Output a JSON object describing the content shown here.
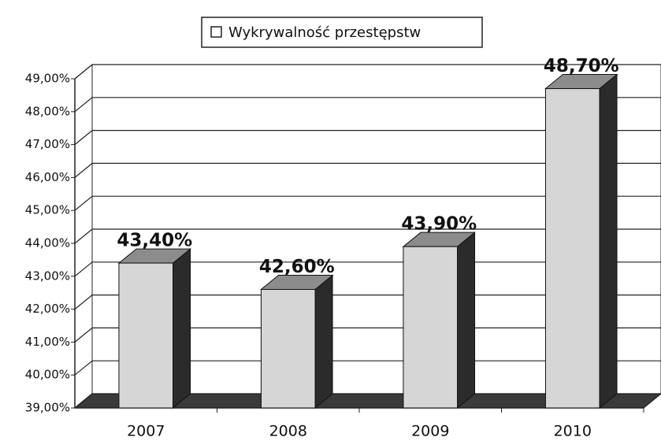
{
  "chart_data": {
    "type": "bar",
    "categories": [
      "2007",
      "2008",
      "2009",
      "2010"
    ],
    "series": [
      {
        "name": "Wykrywalność przestępstw",
        "color": "#d6d6d6",
        "values": [
          43.4,
          42.6,
          43.9,
          48.7
        ],
        "value_labels": [
          "43,40%",
          "42,60%",
          "43,90%",
          "48,70%"
        ]
      }
    ],
    "ylim": [
      39,
      49
    ],
    "yticks": [
      {
        "value": 39,
        "label": "39,00%"
      },
      {
        "value": 40,
        "label": "40,00%"
      },
      {
        "value": 41,
        "label": "41,00%"
      },
      {
        "value": 42,
        "label": "42,00%"
      },
      {
        "value": 43,
        "label": "43,00%"
      },
      {
        "value": 44,
        "label": "44,00%"
      },
      {
        "value": 45,
        "label": "45,00%"
      },
      {
        "value": 46,
        "label": "46,00%"
      },
      {
        "value": 47,
        "label": "47,00%"
      },
      {
        "value": 48,
        "label": "48,00%"
      },
      {
        "value": 49,
        "label": "49,00%"
      }
    ],
    "grid": true,
    "legend": "top"
  }
}
